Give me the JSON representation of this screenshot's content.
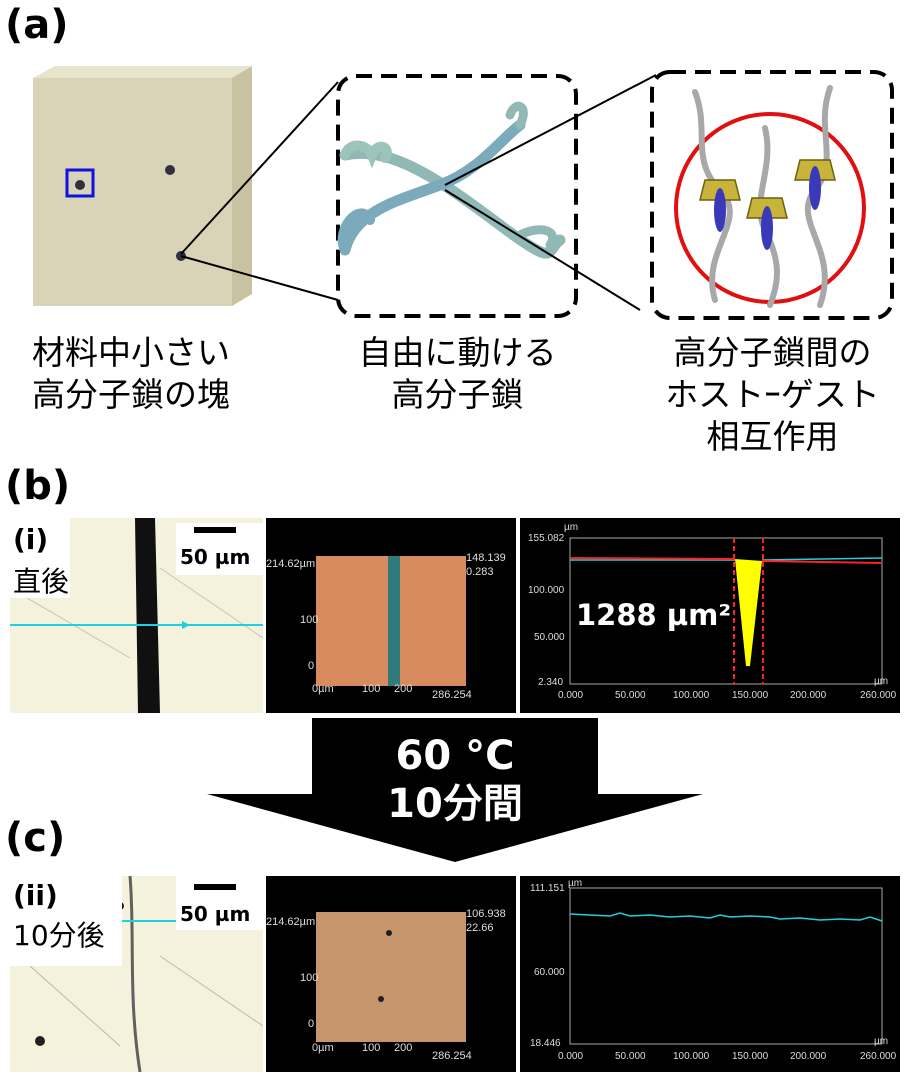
{
  "panels": {
    "a": {
      "label": "(a)"
    },
    "b": {
      "label": "(b)"
    },
    "c": {
      "label": "(c)"
    }
  },
  "captions": {
    "lump": [
      "材料中小さい",
      "高分子鎖の塊"
    ],
    "free": [
      "自由に動ける",
      "高分子鎖"
    ],
    "hostguest": [
      "高分子鎖間の",
      "ホストｰゲスト",
      "相互作用"
    ]
  },
  "row_i": {
    "tag": "(i)",
    "label": "直後",
    "scale": "50 µm",
    "map": {
      "y_top": "214.62µm",
      "y_mid": "100",
      "y_zero": "0",
      "x_zero": "0µm",
      "x_mid1": "100",
      "x_mid2": "200",
      "x_max": "286.254",
      "z_top": "148.139",
      "z_bottom": "0.283"
    },
    "profile": {
      "unit": "µm",
      "y_ticks": [
        "155.082",
        "100.000",
        "50.000",
        "2.340"
      ],
      "x_ticks": [
        "0.000",
        "50.000",
        "100.000",
        "150.000",
        "200.000",
        "260.000"
      ],
      "area_label": "1288 µm²"
    }
  },
  "arrow": {
    "line1": "60 °C",
    "line2": "10分間"
  },
  "row_ii": {
    "tag": "(ii)",
    "label": "10分後",
    "scale": "50 µm",
    "map": {
      "y_top": "214.62µm",
      "y_mid": "100",
      "y_zero": "0",
      "x_zero": "0µm",
      "x_mid1": "100",
      "x_mid2": "200",
      "x_max": "286.254",
      "z_top": "106.938",
      "z_bottom": "22.66"
    },
    "profile": {
      "unit": "µm",
      "y_ticks": [
        "111.151",
        "60.000",
        "18.446"
      ],
      "x_ticks": [
        "0.000",
        "50.000",
        "100.000",
        "150.000",
        "200.000",
        "260.000"
      ]
    }
  },
  "colors": {
    "cube": "#d9d3b8",
    "chain": "#8fb8b6",
    "host": "#c8b43a",
    "guest": "#3a3ab8",
    "circle": "#e01010",
    "cyan_line": "#20d0e0",
    "yellow_fill": "#ffff00",
    "red_line": "#ff2020"
  }
}
